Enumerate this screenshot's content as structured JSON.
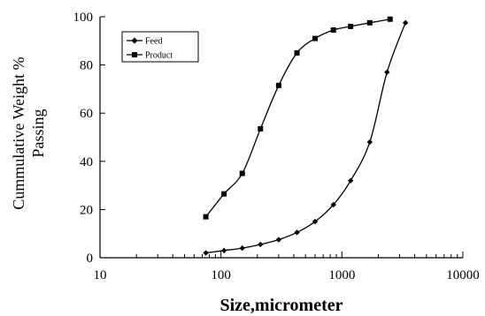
{
  "chart_data": {
    "type": "line",
    "title": "",
    "xlabel": "Size,micrometer",
    "ylabel": "Cummulative Weight % Passing",
    "ylabel_lines": [
      "Cummulative Weight %",
      "Passing"
    ],
    "xscale": "log",
    "xlim": [
      10,
      10000
    ],
    "ylim": [
      0,
      100
    ],
    "x_ticks": [
      10,
      100,
      1000,
      10000
    ],
    "x_tick_labels": [
      "10",
      "100",
      "1000",
      "10000"
    ],
    "y_ticks": [
      0,
      20,
      40,
      60,
      80,
      100
    ],
    "y_tick_labels": [
      "0",
      "20",
      "40",
      "60",
      "80",
      "100"
    ],
    "grid": false,
    "legend_position": "top-left",
    "series": [
      {
        "name": "Feed",
        "marker": "diamond",
        "x": [
          75,
          106,
          150,
          212,
          300,
          425,
          600,
          850,
          1180,
          1700,
          2360,
          3350
        ],
        "y": [
          2,
          3,
          4,
          5.5,
          7.5,
          10.5,
          15,
          22,
          32,
          48,
          77,
          97.5
        ]
      },
      {
        "name": "Product",
        "marker": "square",
        "x": [
          75,
          106,
          150,
          212,
          300,
          425,
          600,
          850,
          1180,
          1700,
          2500
        ],
        "y": [
          17,
          26.5,
          35,
          53.5,
          71.5,
          85,
          91,
          94.5,
          96,
          97.5,
          99
        ]
      }
    ]
  }
}
